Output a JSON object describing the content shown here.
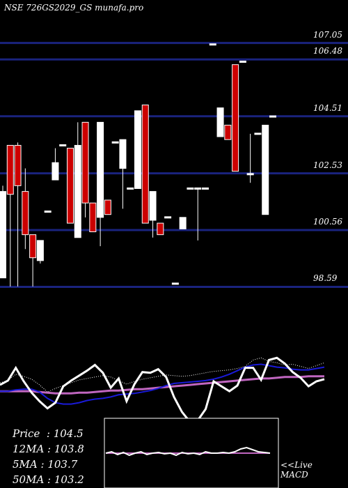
{
  "title": "NSE 726GS2029_GS munafa.pro",
  "live_label_1": "<<Live",
  "live_label_2": "MACD",
  "stats": [
    {
      "label": "Price",
      "sep": "  : ",
      "value": "104.5"
    },
    {
      "label": "12MA",
      "sep": " : ",
      "value": "103.8"
    },
    {
      "label": "5MA",
      "sep": " : ",
      "value": "103.7"
    },
    {
      "label": "50MA",
      "sep": " : ",
      "value": "103.2"
    }
  ],
  "colors": {
    "up": "#ffffff",
    "down": "#cc0000",
    "gridline": "#1a237e",
    "ma_blue": "#1a1ad8",
    "ma_purple": "#c066c0",
    "osc_white": "#ffffff"
  },
  "chart_data": {
    "type": "candlestick",
    "ylim": [
      97.9,
      108.3
    ],
    "price_levels": [
      107.05,
      106.48,
      104.51,
      102.53,
      100.56,
      98.59
    ],
    "candles": [
      {
        "o": 98.9,
        "c": 101.9,
        "h": 102.1,
        "l": 98.9,
        "dir": "up"
      },
      {
        "o": 103.5,
        "c": 101.8,
        "h": 103.5,
        "l": 98.6,
        "dir": "down"
      },
      {
        "o": 103.5,
        "c": 102.1,
        "h": 103.6,
        "l": 98.6,
        "dir": "down"
      },
      {
        "o": 101.9,
        "c": 100.4,
        "h": 102.7,
        "l": 99.9,
        "dir": "down"
      },
      {
        "o": 100.4,
        "c": 99.6,
        "h": 100.4,
        "l": 98.6,
        "dir": "down"
      },
      {
        "o": 99.5,
        "c": 100.2,
        "h": 100.2,
        "l": 99.4,
        "dir": "up"
      },
      {
        "o": 101.2,
        "c": 101.2,
        "h": 101.2,
        "l": 101.2,
        "dir": "up"
      },
      {
        "o": 102.3,
        "c": 102.9,
        "h": 103.4,
        "l": 102.3,
        "dir": "up"
      },
      {
        "o": 103.5,
        "c": 103.5,
        "h": 103.5,
        "l": 103.5,
        "dir": "up"
      },
      {
        "o": 103.4,
        "c": 100.8,
        "h": 103.4,
        "l": 100.8,
        "dir": "down"
      },
      {
        "o": 100.3,
        "c": 103.5,
        "h": 104.3,
        "l": 100.3,
        "dir": "up"
      },
      {
        "o": 104.3,
        "c": 101.5,
        "h": 104.3,
        "l": 101.0,
        "dir": "down"
      },
      {
        "o": 101.5,
        "c": 100.5,
        "h": 101.5,
        "l": 100.5,
        "dir": "down"
      },
      {
        "o": 101.0,
        "c": 104.3,
        "h": 104.3,
        "l": 100.0,
        "dir": "up"
      },
      {
        "o": 101.6,
        "c": 101.1,
        "h": 101.6,
        "l": 101.1,
        "dir": "down"
      },
      {
        "o": 103.6,
        "c": 103.6,
        "h": 103.6,
        "l": 103.6,
        "dir": "up"
      },
      {
        "o": 102.7,
        "c": 103.7,
        "h": 103.7,
        "l": 101.3,
        "dir": "up"
      },
      {
        "o": 102.0,
        "c": 102.0,
        "h": 102.0,
        "l": 102.0,
        "dir": "up"
      },
      {
        "o": 102.0,
        "c": 104.7,
        "h": 104.7,
        "l": 102.0,
        "dir": "up"
      },
      {
        "o": 104.9,
        "c": 100.8,
        "h": 104.9,
        "l": 100.8,
        "dir": "down"
      },
      {
        "o": 101.9,
        "c": 100.9,
        "h": 101.9,
        "l": 100.3,
        "dir": "up"
      },
      {
        "o": 100.8,
        "c": 100.4,
        "h": 100.8,
        "l": 100.4,
        "dir": "down"
      },
      {
        "o": 101.0,
        "c": 101.0,
        "h": 101.0,
        "l": 101.0,
        "dir": "up"
      },
      {
        "o": 98.7,
        "c": 98.7,
        "h": 98.7,
        "l": 98.7,
        "dir": "up"
      },
      {
        "o": 100.6,
        "c": 101.0,
        "h": 101.0,
        "l": 100.6,
        "dir": "up"
      },
      {
        "o": 102.0,
        "c": 102.0,
        "h": 102.0,
        "l": 102.0,
        "dir": "up"
      },
      {
        "o": 102.0,
        "c": 102.0,
        "h": 102.0,
        "l": 100.2,
        "dir": "up"
      },
      {
        "o": 102.0,
        "c": 102.0,
        "h": 102.0,
        "l": 102.0,
        "dir": "up"
      },
      {
        "o": 107.0,
        "c": 107.0,
        "h": 107.0,
        "l": 107.0,
        "dir": "up"
      },
      {
        "o": 103.8,
        "c": 104.8,
        "h": 104.8,
        "l": 103.8,
        "dir": "up"
      },
      {
        "o": 104.2,
        "c": 103.7,
        "h": 104.2,
        "l": 103.7,
        "dir": "down"
      },
      {
        "o": 106.3,
        "c": 102.6,
        "h": 106.3,
        "l": 102.6,
        "dir": "down"
      },
      {
        "o": 106.4,
        "c": 106.4,
        "h": 106.4,
        "l": 106.4,
        "dir": "up"
      },
      {
        "o": 102.5,
        "c": 102.5,
        "h": 103.9,
        "l": 102.2,
        "dir": "up"
      },
      {
        "o": 103.9,
        "c": 103.9,
        "h": 103.9,
        "l": 103.9,
        "dir": "up"
      },
      {
        "o": 101.1,
        "c": 104.2,
        "h": 104.2,
        "l": 101.1,
        "dir": "up"
      },
      {
        "o": 104.5,
        "c": 104.5,
        "h": 104.5,
        "l": 104.5,
        "dir": "up"
      }
    ],
    "indicator": {
      "white": [
        53,
        47,
        29,
        48,
        64,
        76,
        86,
        78,
        55,
        47,
        40,
        33,
        25,
        36,
        57,
        44,
        76,
        52,
        35,
        36,
        31,
        42,
        70,
        91,
        105,
        103,
        87,
        48,
        55,
        62,
        54,
        29,
        29,
        46,
        18,
        15,
        23,
        35,
        43,
        55,
        48,
        45
      ],
      "white_dotted": [
        50,
        47,
        38,
        41,
        45,
        53,
        63,
        58,
        54,
        50,
        46,
        44,
        42,
        40,
        42,
        47,
        52,
        48,
        45,
        43,
        41,
        39,
        40,
        41,
        40,
        38,
        36,
        34,
        33,
        32,
        30,
        27,
        18,
        15,
        20,
        22,
        25,
        24,
        27,
        30,
        26,
        22
      ],
      "blue": [
        62,
        62,
        60,
        59,
        59,
        63,
        72,
        78,
        80,
        80,
        78,
        75,
        73,
        72,
        70,
        67,
        66,
        65,
        63,
        61,
        58,
        54,
        51,
        50,
        49,
        48,
        47,
        45,
        42,
        38,
        33,
        28,
        25,
        24,
        26,
        28,
        29,
        31,
        32,
        32,
        30,
        28
      ],
      "purple": [
        62,
        62,
        62,
        62,
        62,
        63,
        64,
        65,
        65,
        65,
        64,
        64,
        63,
        62,
        61,
        61,
        60,
        59,
        59,
        58,
        57,
        56,
        55,
        54,
        53,
        52,
        51,
        50,
        49,
        48,
        47,
        46,
        45,
        44,
        44,
        43,
        42,
        42,
        42,
        41,
        41,
        41
      ],
      "macd": [
        50,
        48,
        52,
        49,
        53,
        50,
        48,
        52,
        50,
        49,
        51,
        50,
        53,
        49,
        51,
        50,
        52,
        48,
        50,
        50,
        49,
        50,
        48,
        44,
        42,
        45,
        48,
        49,
        50
      ]
    }
  }
}
